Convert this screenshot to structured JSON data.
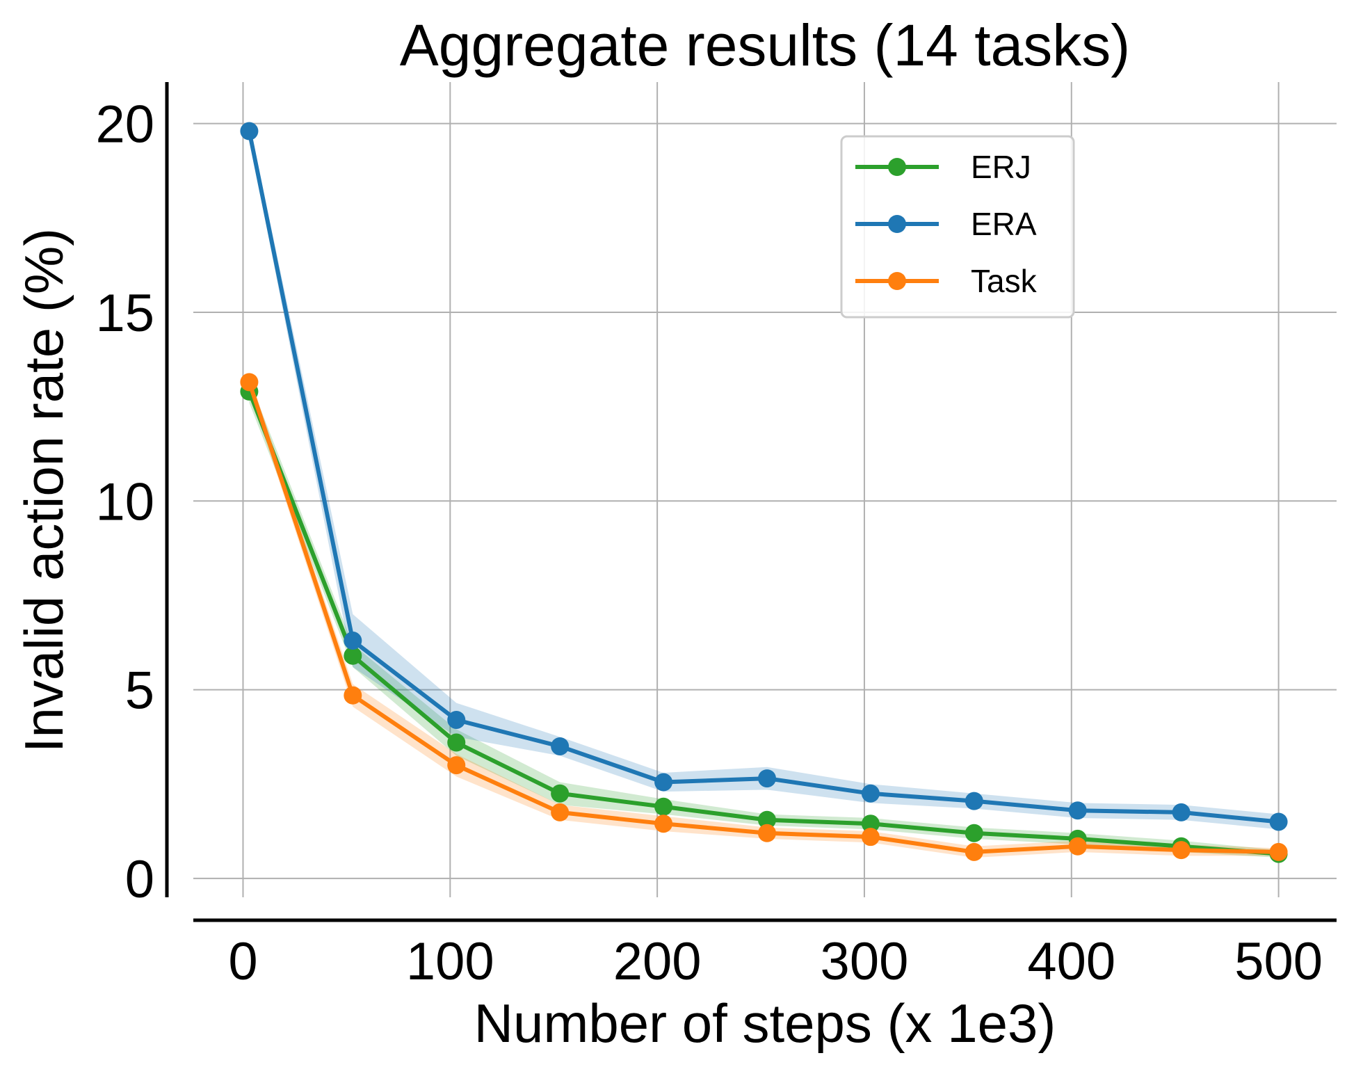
{
  "chart_data": {
    "type": "line",
    "title": "Aggregate results (14 tasks)",
    "xlabel": "Number of steps (x 1e3)",
    "ylabel": "Invalid action rate (%)",
    "xlim": [
      -24,
      528
    ],
    "ylim": [
      -0.5,
      21.1
    ],
    "xticks": [
      0,
      100,
      200,
      300,
      400,
      500
    ],
    "xtick_labels": [
      "0",
      "100",
      "200",
      "300",
      "400",
      "500"
    ],
    "yticks": [
      0,
      5,
      10,
      15,
      20
    ],
    "ytick_labels": [
      "0",
      "5",
      "10",
      "15",
      "20"
    ],
    "grid": true,
    "legend_position": "top-right",
    "x": [
      3,
      53,
      103,
      153,
      203,
      253,
      303,
      353,
      403,
      453,
      500
    ],
    "series": [
      {
        "name": "ERJ",
        "color": "#2ca02c",
        "values": [
          12.9,
          5.9,
          3.6,
          2.25,
          1.9,
          1.55,
          1.45,
          1.2,
          1.05,
          0.85,
          0.65
        ],
        "band": [
          0.3,
          0.3,
          0.35,
          0.3,
          0.2,
          0.15,
          0.15,
          0.15,
          0.15,
          0.15,
          0.1
        ]
      },
      {
        "name": "ERA",
        "color": "#1f77b4",
        "values": [
          19.8,
          6.3,
          4.2,
          3.5,
          2.55,
          2.65,
          2.25,
          2.05,
          1.8,
          1.75,
          1.5
        ],
        "band": [
          0.2,
          0.7,
          0.45,
          0.25,
          0.25,
          0.3,
          0.25,
          0.2,
          0.2,
          0.2,
          0.2
        ]
      },
      {
        "name": "Task",
        "color": "#ff7f0e",
        "values": [
          13.15,
          4.85,
          3.0,
          1.75,
          1.45,
          1.2,
          1.1,
          0.7,
          0.85,
          0.75,
          0.7
        ],
        "band": [
          0.2,
          0.3,
          0.3,
          0.2,
          0.2,
          0.15,
          0.15,
          0.15,
          0.15,
          0.15,
          0.1
        ]
      }
    ]
  }
}
